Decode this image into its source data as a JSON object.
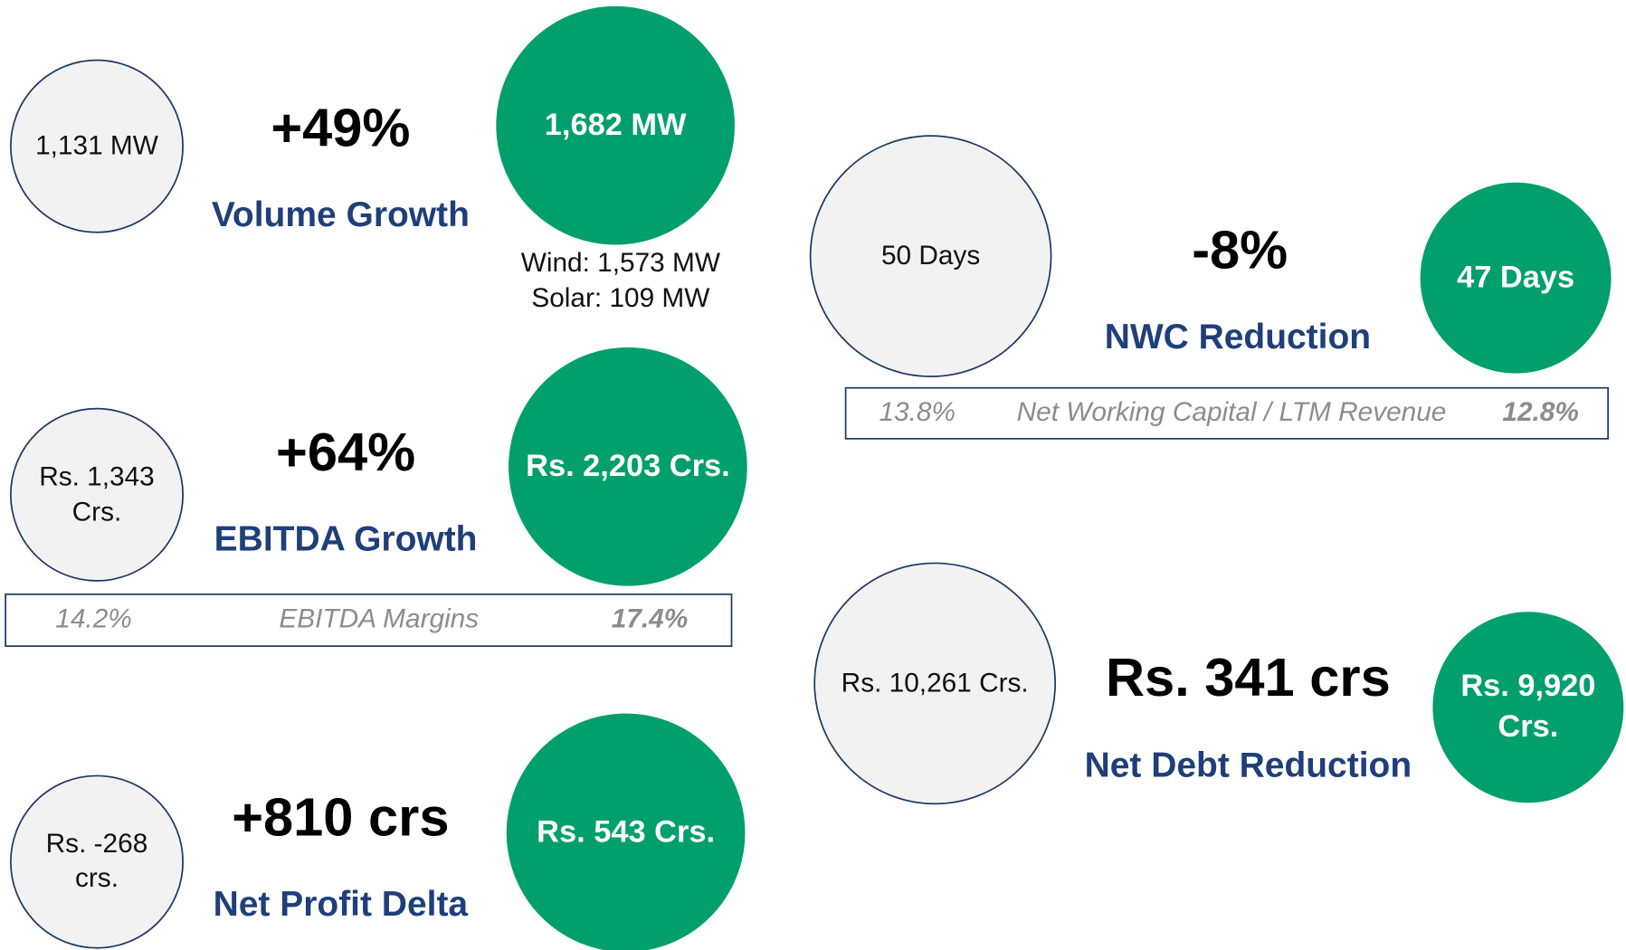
{
  "metrics": [
    {
      "before": [
        "1,131 MW"
      ],
      "change": "+49%",
      "label": "Volume Growth",
      "after": [
        "1,682 MW"
      ],
      "notes": [
        "Wind: 1,573 MW",
        "Solar: 109 MW"
      ]
    },
    {
      "before": [
        "Rs. 1,343",
        "Crs."
      ],
      "change": "+64%",
      "label": "EBITDA Growth",
      "after": [
        "Rs. 2,203 Crs."
      ],
      "ratio": {
        "before": "14.2%",
        "label": "EBITDA Margins",
        "after": "17.4%"
      }
    },
    {
      "before": [
        "Rs. -268",
        "crs."
      ],
      "change": "+810 crs",
      "label": "Net Profit Delta",
      "after": [
        "Rs. 543 Crs."
      ]
    },
    {
      "before": [
        "50 Days"
      ],
      "change": "-8%",
      "label": "NWC Reduction",
      "after": [
        "47 Days"
      ],
      "ratio": {
        "before": "13.8%",
        "label": "Net Working Capital /  LTM Revenue",
        "after": "12.8%"
      }
    },
    {
      "before": [
        "Rs. 10,261 Crs."
      ],
      "change": "Rs. 341 crs",
      "label": "Net Debt Reduction",
      "after": [
        "Rs. 9,920",
        "Crs."
      ]
    }
  ]
}
